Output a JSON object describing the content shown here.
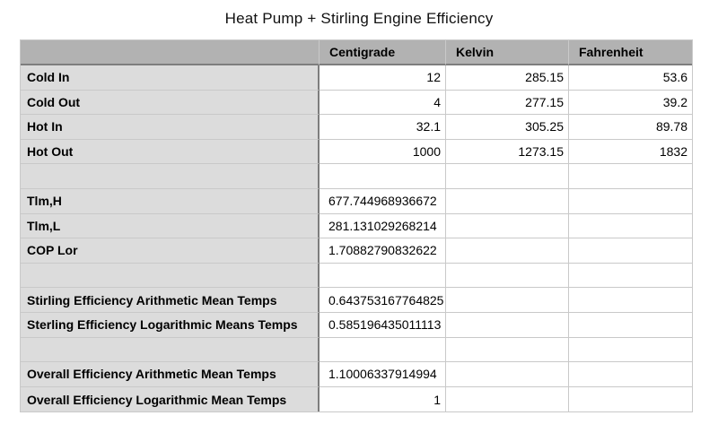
{
  "title": "Heat Pump + Stirling Engine Efficiency",
  "table": {
    "header": {
      "label": "",
      "centigrade": "Centigrade",
      "kelvin": "Kelvin",
      "fahrenheit": "Fahrenheit"
    },
    "rows": [
      {
        "label": "Cold In",
        "centigrade": "12",
        "kelvin": "285.15",
        "fahrenheit": "53.6"
      },
      {
        "label": "Cold Out",
        "centigrade": "4",
        "kelvin": "277.15",
        "fahrenheit": "39.2"
      },
      {
        "label": "Hot In",
        "centigrade": "32.1",
        "kelvin": "305.25",
        "fahrenheit": "89.78"
      },
      {
        "label": "Hot Out",
        "centigrade": "1000",
        "kelvin": "1273.15",
        "fahrenheit": "1832"
      },
      {
        "label": "",
        "centigrade": "",
        "kelvin": "",
        "fahrenheit": ""
      },
      {
        "label": "Tlm,H",
        "centigrade": "677.744968936672",
        "kelvin": "",
        "fahrenheit": ""
      },
      {
        "label": "Tlm,L",
        "centigrade": "281.131029268214",
        "kelvin": "",
        "fahrenheit": ""
      },
      {
        "label": "COP Lor",
        "centigrade": "1.70882790832622",
        "kelvin": "",
        "fahrenheit": ""
      },
      {
        "label": "",
        "centigrade": "",
        "kelvin": "",
        "fahrenheit": ""
      },
      {
        "label": "Stirling Efficiency Arithmetic Mean Temps",
        "centigrade": "0.643753167764825",
        "kelvin": "",
        "fahrenheit": ""
      },
      {
        "label": "Sterling Efficiency Logarithmic Means Temps",
        "centigrade": "0.585196435011113",
        "kelvin": "",
        "fahrenheit": ""
      },
      {
        "label": "",
        "centigrade": "",
        "kelvin": "",
        "fahrenheit": ""
      },
      {
        "label": "Overall Efficiency Arithmetic Mean Temps",
        "centigrade": "1.10006337914994",
        "kelvin": "",
        "fahrenheit": ""
      },
      {
        "label": "Overall Efficiency Logarithmic Mean Temps",
        "centigrade": "1",
        "kelvin": "",
        "fahrenheit": ""
      }
    ],
    "colors": {
      "header_bg": "#b2b2b2",
      "label_bg": "#dcdcdc",
      "grid_line": "#c9c9c9",
      "dark_line": "#7e7e7e",
      "text": "#000000",
      "page_bg": "#ffffff"
    }
  }
}
